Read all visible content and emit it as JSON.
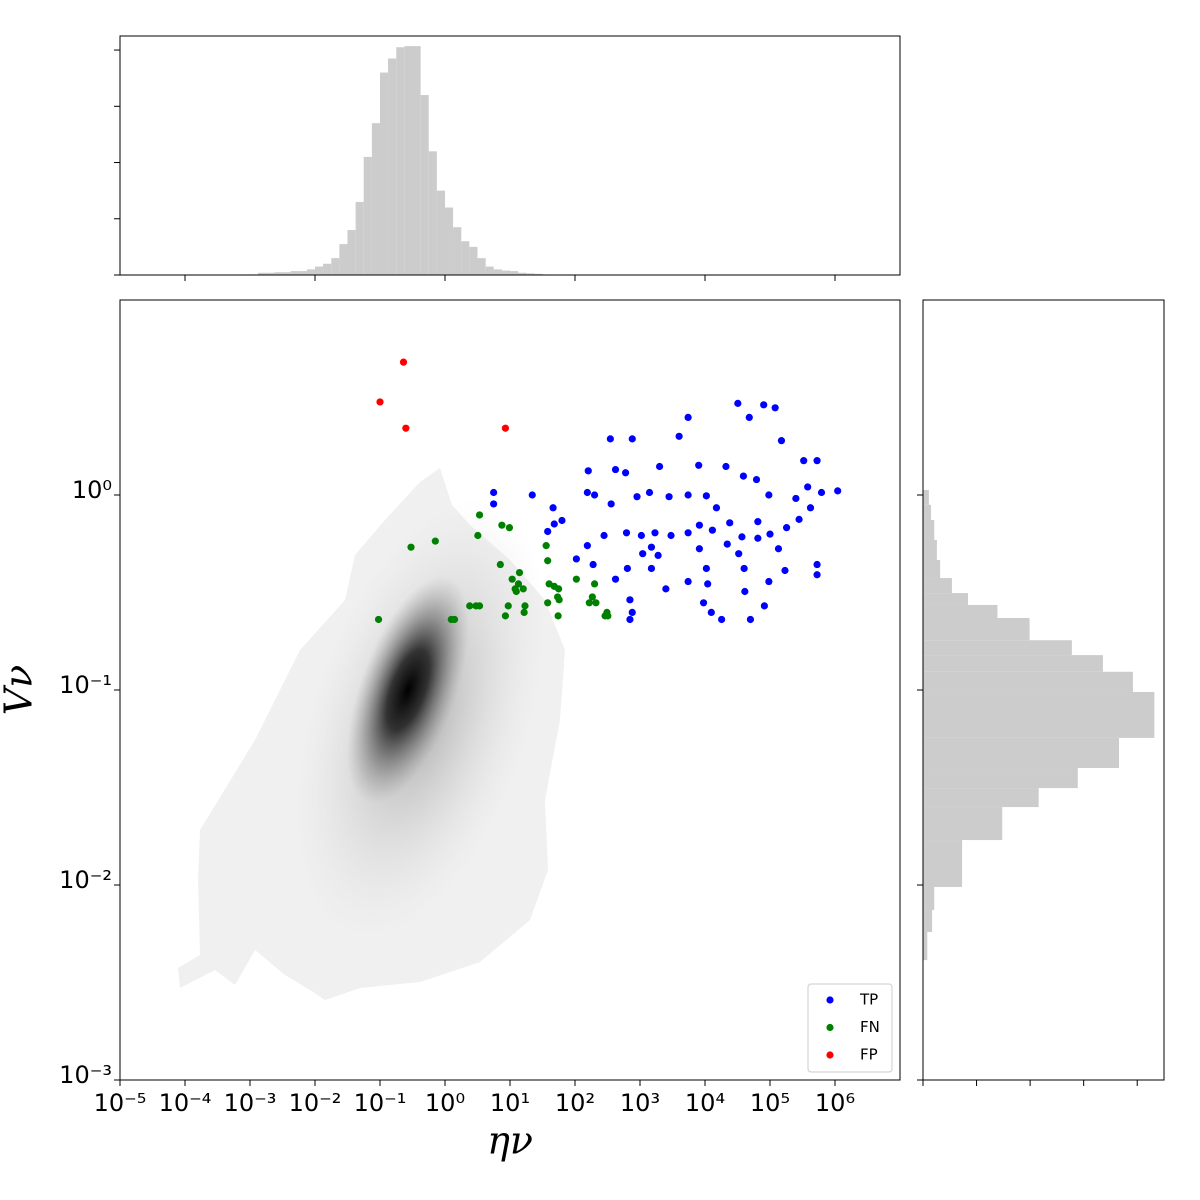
{
  "chart_data": [
    {
      "type": "scatter",
      "x_label": "ην",
      "y_label": "Vν",
      "xscale": "log",
      "yscale": "log",
      "xlim": [
        1e-05,
        10000000.0
      ],
      "ylim": [
        0.001,
        10
      ],
      "xticks": [
        {
          "value": 1e-05,
          "label": "10⁻⁵"
        },
        {
          "value": 0.0001,
          "label": "10⁻⁴"
        },
        {
          "value": 0.001,
          "label": "10⁻³"
        },
        {
          "value": 0.01,
          "label": "10⁻²"
        },
        {
          "value": 0.1,
          "label": "10⁻¹"
        },
        {
          "value": 1,
          "label": "10⁰"
        },
        {
          "value": 10,
          "label": "10¹"
        },
        {
          "value": 100,
          "label": "10²"
        },
        {
          "value": 1000,
          "label": "10³"
        },
        {
          "value": 10000,
          "label": "10⁴"
        },
        {
          "value": 100000,
          "label": "10⁵"
        },
        {
          "value": 1000000,
          "label": "10⁶"
        }
      ],
      "yticks": [
        {
          "value": 0.001,
          "label": "10⁻³"
        },
        {
          "value": 0.01,
          "label": "10⁻²"
        },
        {
          "value": 0.1,
          "label": "10⁻¹"
        },
        {
          "value": 1,
          "label": "10⁰"
        }
      ],
      "legend": "lower right",
      "series": [
        {
          "name": "TP",
          "color": "#0000ff",
          "x": [
            5.6,
            5.6,
            22,
            46,
            48,
            38,
            63,
            155,
            160,
            350,
            760,
            420,
            600,
            900,
            1050,
            1500,
            2000,
            4000,
            5500,
            8000,
            10500,
            21000,
            32000,
            48000,
            80000,
            120000,
            150000,
            330000,
            530000,
            1100000,
            620000,
            420000,
            280000,
            180000,
            100000,
            65000,
            37000,
            22000,
            13000,
            8200,
            5500,
            3000,
            1700,
            620,
            280,
            155,
            105,
            190,
            420,
            640,
            700,
            760,
            700,
            1500,
            2500,
            5500,
            11000,
            12500,
            18000,
            50000,
            82000,
            96000,
            170000,
            530000,
            530000,
            10500,
            40000,
            33000,
            1900,
            5500,
            15000,
            96000,
            250000,
            380000,
            62000,
            39000,
            2800,
            1400,
            360,
            200,
            8200,
            65000,
            135000,
            24000,
            1100,
            9500,
            41000
          ],
          "values": [
            1.03,
            0.9,
            1.0,
            0.86,
            0.71,
            0.65,
            0.74,
            1.03,
            1.33,
            1.94,
            1.94,
            1.35,
            1.3,
            0.98,
            0.62,
            0.54,
            1.4,
            2.0,
            2.5,
            1.42,
            0.99,
            1.4,
            2.95,
            2.5,
            2.9,
            2.8,
            1.9,
            1.5,
            1.5,
            1.05,
            1.03,
            0.86,
            0.75,
            0.68,
            0.63,
            0.6,
            0.61,
            0.56,
            0.66,
            0.7,
            0.64,
            0.62,
            0.64,
            0.64,
            0.62,
            0.55,
            0.47,
            0.44,
            0.37,
            0.42,
            0.29,
            0.25,
            0.23,
            0.42,
            0.33,
            0.36,
            0.35,
            0.25,
            0.23,
            0.23,
            0.27,
            0.36,
            0.41,
            0.44,
            0.39,
            0.42,
            0.42,
            0.5,
            0.49,
            1.0,
            0.86,
            1.0,
            0.96,
            1.1,
            1.2,
            1.25,
            0.98,
            1.03,
            0.9,
            1.0,
            0.53,
            0.73,
            0.53,
            0.72,
            0.5,
            0.28,
            0.32
          ]
        },
        {
          "name": "FN",
          "color": "#008000",
          "x": [
            0.095,
            0.3,
            0.71,
            1.25,
            1.4,
            2.4,
            3.0,
            3.4,
            3.2,
            3.4,
            7.1,
            7.5,
            8.5,
            9.4,
            9.8,
            10.8,
            12,
            12.5,
            13.5,
            14,
            16,
            16.5,
            17,
            36,
            38,
            38,
            40,
            48,
            55,
            54,
            57,
            56,
            105,
            166,
            185,
            200,
            210,
            290,
            310,
            320
          ],
          "values": [
            0.23,
            0.54,
            0.58,
            0.23,
            0.23,
            0.27,
            0.27,
            0.27,
            0.62,
            0.79,
            0.44,
            0.7,
            0.24,
            0.27,
            0.68,
            0.37,
            0.33,
            0.32,
            0.35,
            0.4,
            0.33,
            0.25,
            0.27,
            0.55,
            0.46,
            0.28,
            0.35,
            0.34,
            0.24,
            0.3,
            0.29,
            0.33,
            0.37,
            0.28,
            0.3,
            0.35,
            0.28,
            0.24,
            0.25,
            0.24
          ]
        },
        {
          "name": "FP",
          "color": "#ff0000",
          "x": [
            0.1,
            0.23,
            0.25,
            8.5
          ],
          "values": [
            3.0,
            4.8,
            2.2,
            2.2
          ]
        }
      ]
    },
    {
      "type": "histogram",
      "orientation": "vertical",
      "xscale": "log",
      "color": "#cccccc",
      "xlim": [
        1e-05,
        10000000.0
      ],
      "ylim": [
        0,
        4.25
      ],
      "xticks": [
        0.0001,
        0.01,
        1,
        100,
        10000,
        1000000
      ],
      "yticks": [
        0,
        1,
        2,
        3,
        4
      ],
      "bins": [
        0.000237,
        0.000316,
        0.000422,
        0.000562,
        0.00075,
        0.001,
        0.00133,
        0.00178,
        0.00237,
        0.00316,
        0.00422,
        0.00562,
        0.0075,
        0.01,
        0.0133,
        0.0178,
        0.0237,
        0.0316,
        0.0422,
        0.0562,
        0.075,
        0.1,
        0.133,
        0.178,
        0.237,
        0.316,
        0.422,
        0.562,
        0.75,
        1,
        1.33,
        1.78,
        2.37,
        3.16,
        4.22,
        5.62,
        7.5,
        10,
        13.3,
        17.8,
        23.7,
        31.6,
        42.2,
        56.2,
        75
      ],
      "values": [
        0.005,
        0.005,
        0.005,
        0.005,
        0.01,
        0.01,
        0.04,
        0.04,
        0.05,
        0.05,
        0.07,
        0.07,
        0.1,
        0.15,
        0.2,
        0.3,
        0.55,
        0.8,
        1.3,
        2.1,
        2.7,
        3.6,
        3.85,
        4.05,
        4.07,
        4.07,
        3.2,
        2.2,
        1.5,
        1.2,
        0.85,
        0.6,
        0.5,
        0.3,
        0.15,
        0.1,
        0.08,
        0.07,
        0.04,
        0.03,
        0.02,
        0.01,
        0,
        0
      ]
    },
    {
      "type": "histogram",
      "orientation": "horizontal",
      "yscale": "log",
      "color": "#cccccc",
      "xlim": [
        0,
        4.5
      ],
      "ylim": [
        0.001,
        10
      ],
      "xticks": [
        0,
        1,
        2,
        3,
        4
      ],
      "yticks": [
        0.001,
        0.01,
        0.1,
        1
      ],
      "bins": [
        0.00412,
        0.00574,
        0.00745,
        0.00977,
        0.017,
        0.0251,
        0.0314,
        0.0398,
        0.0568,
        0.0977,
        0.124,
        0.151,
        0.18,
        0.234,
        0.273,
        0.314,
        0.375,
        0.464,
        0.588,
        0.745,
        0.89,
        1.06
      ],
      "values": [
        0.08,
        0.17,
        0.21,
        0.73,
        1.48,
        2.16,
        2.89,
        3.66,
        4.32,
        3.92,
        3.36,
        2.78,
        1.99,
        1.39,
        0.84,
        0.54,
        0.32,
        0.26,
        0.21,
        0.15,
        0.11
      ]
    }
  ]
}
